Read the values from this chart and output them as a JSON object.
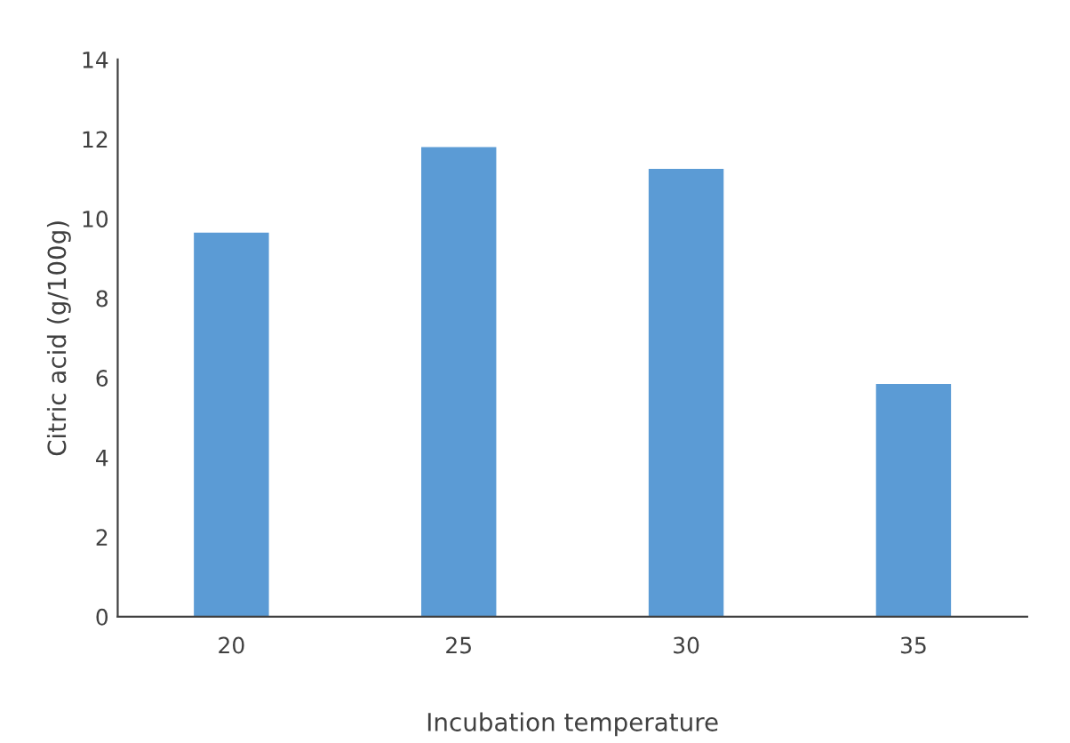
{
  "chart_data": {
    "type": "bar",
    "xlabel": "Incubation temperature",
    "ylabel": "Citric acid (g/100g)",
    "categories": [
      "20",
      "25",
      "30",
      "35"
    ],
    "values": [
      9.65,
      11.8,
      11.25,
      5.85
    ],
    "color": "#5b9bd5",
    "ylim": [
      0,
      14
    ],
    "yticks": [
      0,
      2,
      4,
      6,
      8,
      10,
      12,
      14
    ],
    "grid": false
  }
}
